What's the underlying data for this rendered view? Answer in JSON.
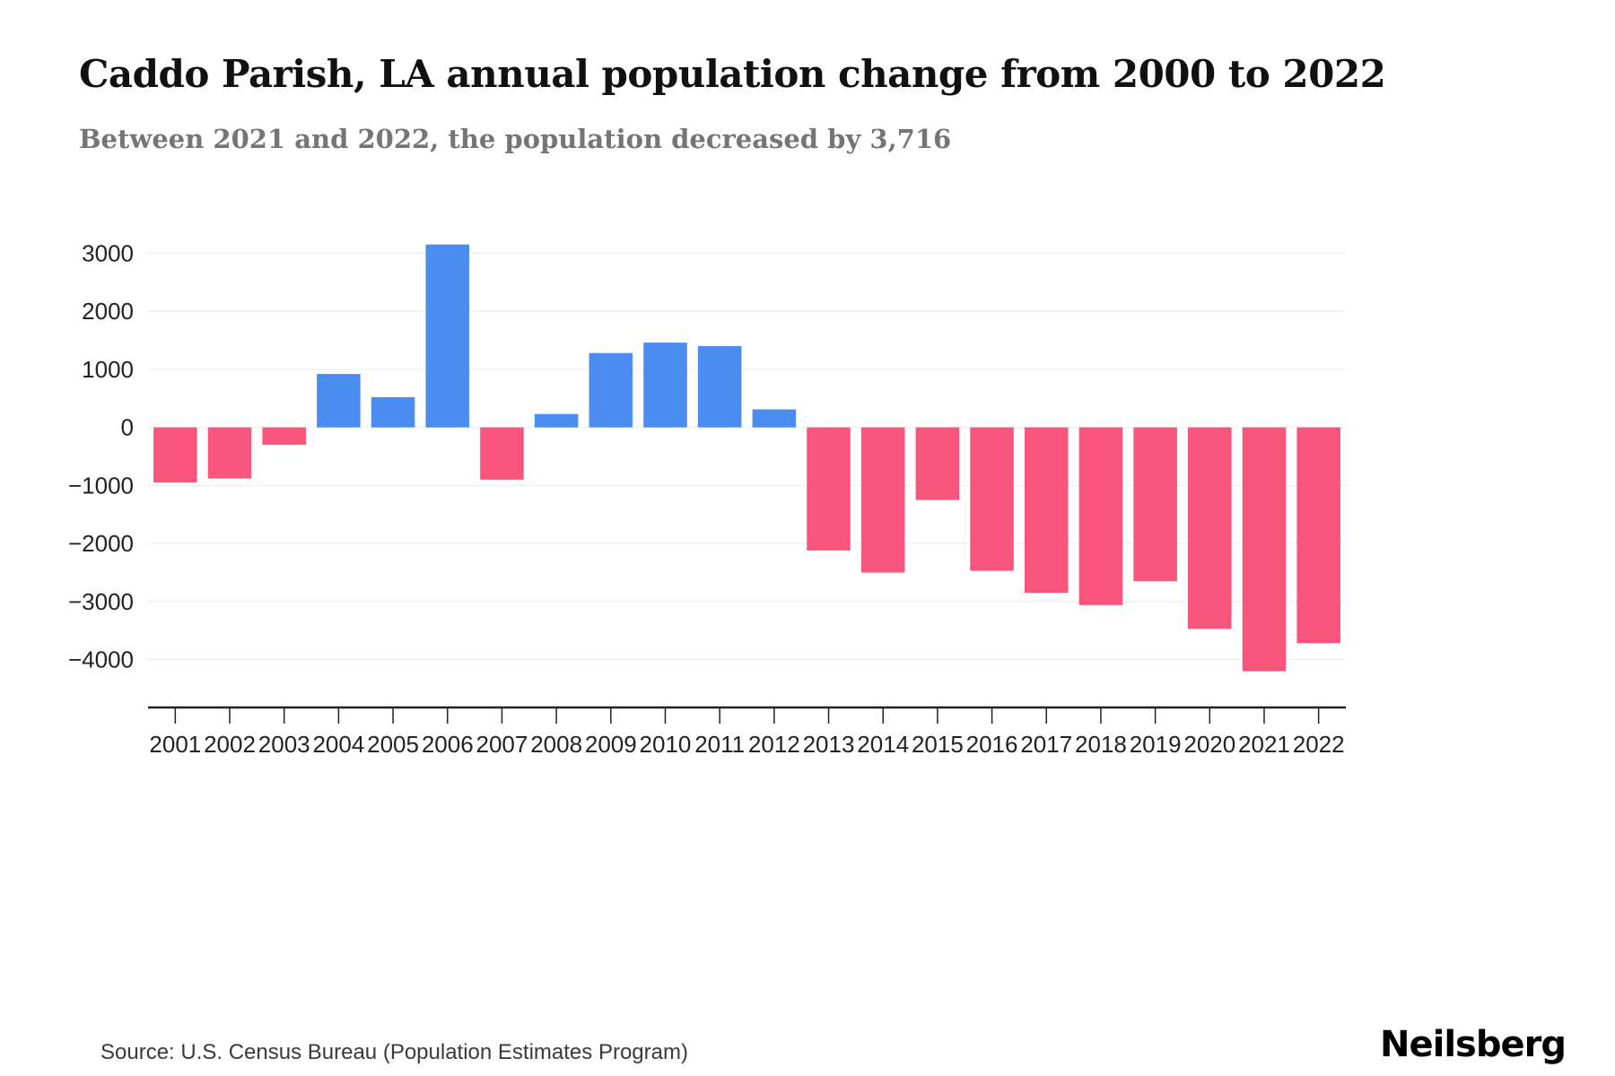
{
  "header": {
    "title": "Caddo Parish, LA annual population change from 2000 to 2022",
    "subtitle": "Between 2021 and 2022, the population decreased by 3,716"
  },
  "footer": {
    "source": "Source: U.S. Census Bureau (Population Estimates Program)",
    "brand": "Neilsberg"
  },
  "chart_data": {
    "type": "bar",
    "title": "Caddo Parish, LA annual population change from 2000 to 2022",
    "xlabel": "",
    "ylabel": "",
    "categories": [
      "2001",
      "2002",
      "2003",
      "2004",
      "2005",
      "2006",
      "2007",
      "2008",
      "2009",
      "2010",
      "2011",
      "2012",
      "2013",
      "2014",
      "2015",
      "2016",
      "2017",
      "2018",
      "2019",
      "2020",
      "2021",
      "2022"
    ],
    "values": [
      -950,
      -880,
      -300,
      920,
      520,
      3150,
      -900,
      230,
      1280,
      1460,
      1400,
      310,
      -2120,
      -2500,
      -1250,
      -2470,
      -2850,
      -3060,
      -2650,
      -3470,
      -4200,
      -3716
    ],
    "yticks": [
      3000,
      2000,
      1000,
      0,
      -1000,
      -2000,
      -3000,
      -4000
    ],
    "ylim": [
      -4700,
      3500
    ],
    "grid": true,
    "legend": false,
    "colors": {
      "positive": "#4a8cf0",
      "negative": "#f8557d",
      "gridline": "#e9e9e9",
      "axis": "#222222",
      "tick_label": "#222222"
    }
  }
}
